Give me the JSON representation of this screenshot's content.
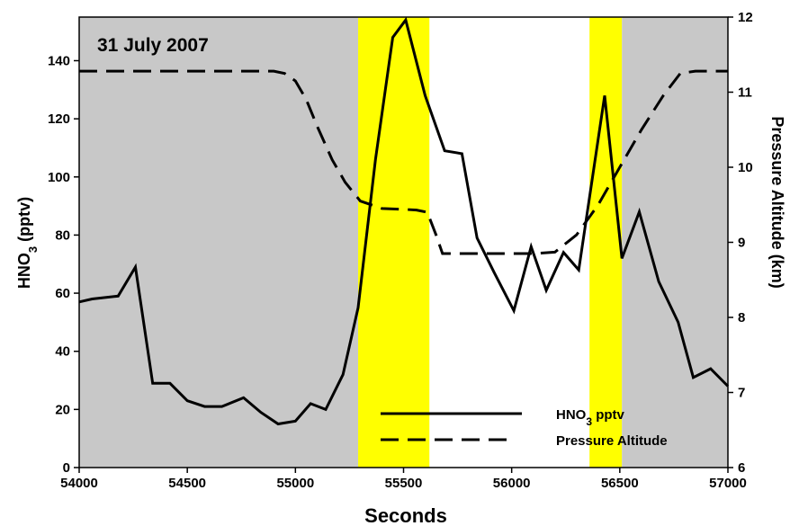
{
  "chart_data": {
    "type": "line",
    "annotation": "31 July 2007",
    "xlabel": "Seconds",
    "ylabel_left": "HNO",
    "ylabel_left_sub": "3",
    "ylabel_left_unit": " (pptv)",
    "ylabel_right": "Pressure Altitude (km)",
    "xlim": [
      54000,
      57000
    ],
    "ylim_left": [
      0,
      155
    ],
    "ylim_right": [
      6,
      12
    ],
    "x_ticks": [
      54000,
      54500,
      55000,
      55500,
      56000,
      56500,
      57000
    ],
    "y_ticks_left": [
      0,
      20,
      40,
      60,
      80,
      100,
      120,
      140
    ],
    "y_ticks_right": [
      6,
      7,
      8,
      9,
      10,
      11,
      12
    ],
    "background_regions": [
      {
        "from": 54000,
        "to": 55290,
        "color": "#c8c8c8"
      },
      {
        "from": 55290,
        "to": 55620,
        "color": "#ffff00"
      },
      {
        "from": 55620,
        "to": 56360,
        "color": "#ffffff"
      },
      {
        "from": 56360,
        "to": 56510,
        "color": "#ffff00"
      },
      {
        "from": 56510,
        "to": 57000,
        "color": "#c8c8c8"
      }
    ],
    "legend": {
      "placement": "bottom-center",
      "entries": [
        {
          "label": "HNO",
          "sub": "3",
          "suffix": " pptv",
          "dash": "solid"
        },
        {
          "label": "Pressure Altitude",
          "sub": "",
          "suffix": "",
          "dash": "dashed"
        }
      ]
    },
    "series": [
      {
        "axis": "left",
        "dash": "solid",
        "x": [
          54000,
          54060,
          54180,
          54260,
          54340,
          54420,
          54500,
          54580,
          54660,
          54760,
          54840,
          54920,
          55000,
          55070,
          55140,
          55220,
          55290,
          55370,
          55450,
          55510,
          55600,
          55690,
          55770,
          55840,
          55920,
          56010,
          56090,
          56160,
          56240,
          56310,
          56430,
          56510,
          56590,
          56680,
          56770,
          56840,
          56920,
          57000
        ],
        "y": [
          57,
          58,
          59,
          69,
          29,
          29,
          23,
          21,
          21,
          24,
          19,
          15,
          16,
          22,
          20,
          32,
          55,
          106,
          148,
          154,
          128,
          109,
          108,
          79,
          67,
          54,
          76,
          61,
          74,
          68,
          128,
          72,
          88,
          64,
          50,
          31,
          34,
          28
        ]
      },
      {
        "axis": "right",
        "dash": "dashed",
        "x": [
          54000,
          54200,
          54500,
          54900,
          54950,
          55000,
          55050,
          55100,
          55170,
          55230,
          55300,
          55400,
          55500,
          55560,
          55610,
          55650,
          55680,
          55750,
          55900,
          56000,
          56100,
          56200,
          56300,
          56400,
          56500,
          56600,
          56700,
          56780,
          56850,
          57000
        ],
        "y": [
          11.28,
          11.28,
          11.28,
          11.28,
          11.25,
          11.15,
          10.9,
          10.55,
          10.1,
          9.8,
          9.55,
          9.45,
          9.44,
          9.43,
          9.4,
          9.1,
          8.85,
          8.85,
          8.85,
          8.85,
          8.85,
          8.87,
          9.1,
          9.5,
          10.0,
          10.5,
          10.95,
          11.25,
          11.28,
          11.28
        ]
      }
    ]
  }
}
